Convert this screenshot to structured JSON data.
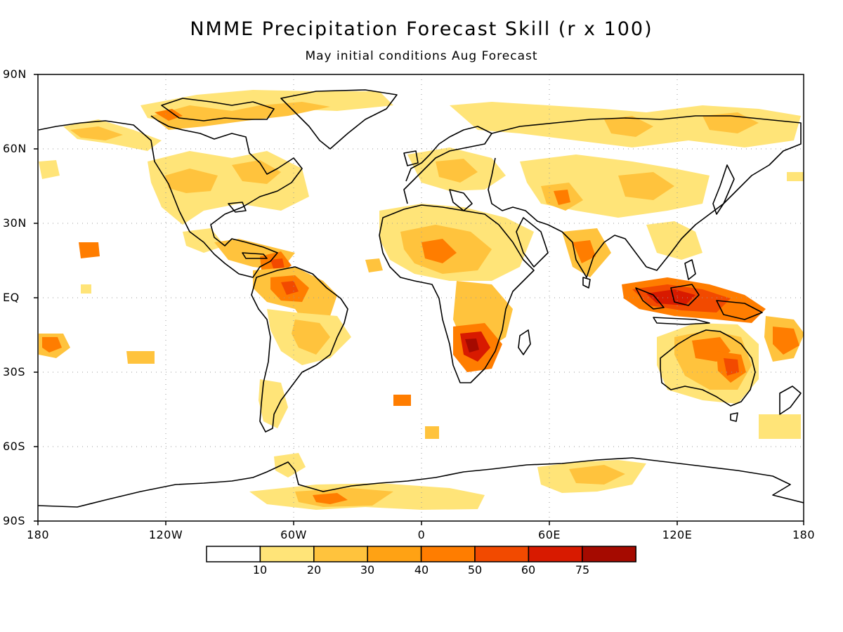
{
  "title": "NMME Precipitation Forecast Skill (r x 100)",
  "subtitle": "May initial conditions  Aug Forecast",
  "axes": {
    "lat_ticks": [
      "90N",
      "60N",
      "30N",
      "EQ",
      "30S",
      "60S",
      "90S"
    ],
    "lon_ticks": [
      "180",
      "120W",
      "60W",
      "0",
      "60E",
      "120E",
      "180"
    ]
  },
  "colorbar": {
    "labels": [
      "10",
      "20",
      "30",
      "40",
      "50",
      "60",
      "75"
    ],
    "colors": [
      "#ffffff",
      "#ffe478",
      "#ffc33d",
      "#ffa214",
      "#ff7d00",
      "#f24a00",
      "#d81a00",
      "#a50a00"
    ]
  },
  "map": {
    "projection": "equirectangular",
    "lon_range": [
      -180,
      180
    ],
    "lat_range": [
      -90,
      90
    ],
    "grid": "dotted",
    "coastline_color": "#000000"
  }
}
